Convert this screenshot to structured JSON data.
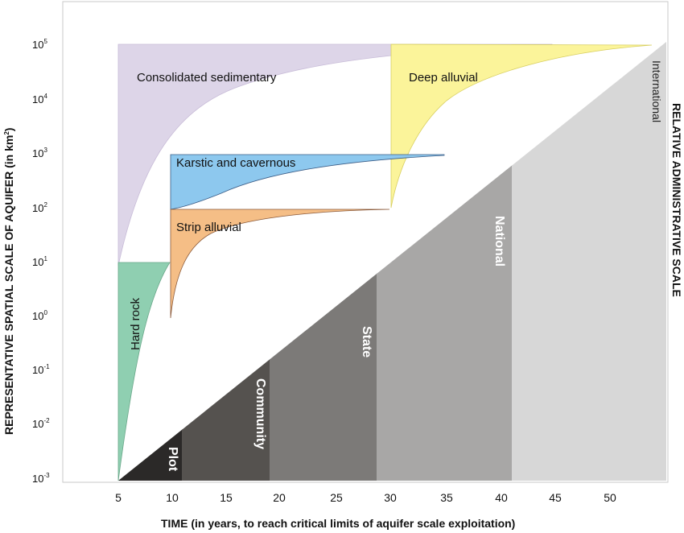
{
  "axes": {
    "x_title": "TIME (in years, to reach critical limits of aquifer scale exploitation)",
    "y_title_main": "REPRESENTATIVE SPATIAL SCALE OF AQUIFER",
    "y_title_unit": "(in km",
    "y_title_unit_sup": "2",
    "y_title_unit_close": ")",
    "right_title": "RELATIVE ADMINISTRATIVE SCALE",
    "x_ticks": [
      "5",
      "10",
      "15",
      "20",
      "25",
      "30",
      "35",
      "40",
      "45",
      "50"
    ],
    "y_ticks": [
      {
        "base": "10",
        "exp": "5"
      },
      {
        "base": "10",
        "exp": "4"
      },
      {
        "base": "10",
        "exp": "3"
      },
      {
        "base": "10",
        "exp": "2"
      },
      {
        "base": "10",
        "exp": "1"
      },
      {
        "base": "10",
        "exp": "0"
      },
      {
        "base": "10",
        "exp": "-1"
      },
      {
        "base": "10",
        "exp": "-2"
      },
      {
        "base": "10",
        "exp": "-3"
      }
    ]
  },
  "regions": {
    "consolidated": {
      "label": "Consolidated sedimentary",
      "color": "#ddd5e8"
    },
    "deep_alluvial": {
      "label": "Deep alluvial",
      "color": "#fbf49a"
    },
    "karstic": {
      "label": "Karstic and cavernous",
      "color": "#8dc8ee"
    },
    "strip_alluvial": {
      "label": "Strip alluvial",
      "color": "#f5be86"
    },
    "hard_rock": {
      "label": "Hard rock",
      "color": "#8fcfb1"
    }
  },
  "admin_scale": {
    "plot": {
      "label": "Plot",
      "color": "#2b2928"
    },
    "community": {
      "label": "Community",
      "color": "#55524f"
    },
    "state": {
      "label": "State",
      "color": "#7c7a78"
    },
    "national": {
      "label": "National",
      "color": "#a8a7a6"
    },
    "international": {
      "label": "International",
      "color": "#d7d7d7"
    }
  }
}
